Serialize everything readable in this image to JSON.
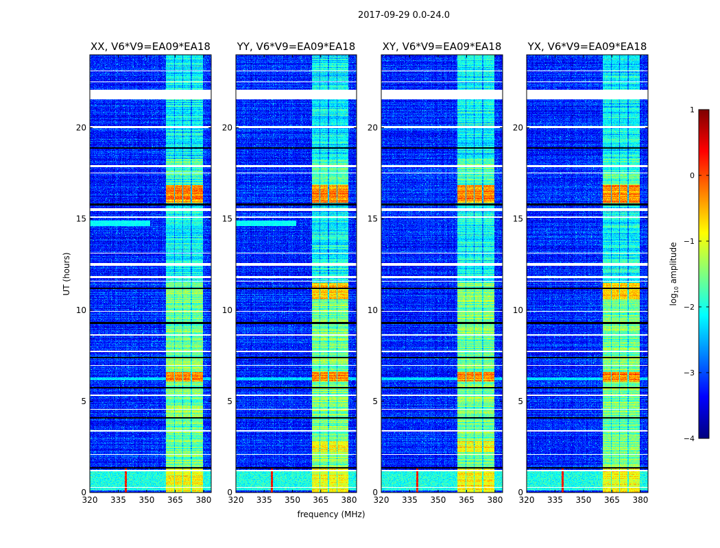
{
  "chart_data": {
    "type": "heatmap",
    "suptitle": "2017-09-29 0.0-24.0",
    "panels": [
      {
        "title": "XX, V6*V9=EA09*EA18",
        "seed": 11
      },
      {
        "title": "YY, V6*V9=EA09*EA18",
        "seed": 23
      },
      {
        "title": "XY, V6*V9=EA09*EA18",
        "seed": 37
      },
      {
        "title": "YX, V6*V9=EA09*EA18",
        "seed": 41
      }
    ],
    "xlabel": "frequency (MHz)",
    "ylabel": "UT (hours)",
    "xlim": [
      320,
      384
    ],
    "ylim": [
      0,
      24
    ],
    "xticks": [
      320,
      335,
      350,
      365,
      380
    ],
    "yticks": [
      0,
      5,
      10,
      15,
      20
    ],
    "colorbar": {
      "label_prefix": "log",
      "label_sub": "10",
      "label_suffix": " amplitude",
      "range": [
        -4,
        1
      ],
      "ticks": [
        1,
        0,
        -1,
        -2,
        -3,
        -4
      ],
      "tick_labels": [
        "1",
        "0",
        "−1",
        "−2",
        "−3",
        "−4"
      ],
      "colormap": "jet"
    },
    "features": {
      "background_log_amp": -3.2,
      "rfi_subbands_mhz": [
        [
          360.3,
          364.3
        ],
        [
          364.8,
          368.8
        ],
        [
          369.3,
          373.3
        ],
        [
          373.8,
          379.6
        ]
      ],
      "rfi_band_log_amp": -1.8,
      "flagged_hours": [
        [
          21.55,
          22.1
        ],
        [
          20.0,
          20.08
        ],
        [
          17.85,
          17.95
        ],
        [
          17.5,
          17.55
        ],
        [
          15.45,
          15.6
        ],
        [
          15.05,
          15.12
        ],
        [
          12.45,
          12.6
        ],
        [
          11.75,
          11.85
        ],
        [
          11.55,
          11.62
        ],
        [
          8.6,
          8.66
        ],
        [
          7.7,
          7.76
        ],
        [
          6.95,
          7.0
        ],
        [
          5.3,
          5.36
        ],
        [
          4.55,
          4.6
        ],
        [
          3.35,
          3.4
        ],
        [
          2.05,
          2.1
        ],
        [
          1.15,
          1.25
        ],
        [
          0.25,
          0.3
        ],
        [
          23.1,
          23.15
        ],
        [
          22.5,
          22.55
        ],
        [
          13.1,
          13.15
        ],
        [
          9.9,
          9.95
        ]
      ],
      "dark_hours": [
        18.9,
        15.8,
        11.2,
        9.3,
        7.4,
        5.75,
        4.1,
        1.35
      ],
      "strong_events": [
        {
          "hours": [
            15.9,
            16.85
          ],
          "log_amp": -0.3,
          "panels": [
            0,
            1,
            2,
            3
          ]
        },
        {
          "hours": [
            6.1,
            6.6
          ],
          "log_amp": -0.3,
          "panels": [
            0,
            1,
            2,
            3
          ]
        },
        {
          "hours": [
            10.6,
            11.5
          ],
          "log_amp": -0.7,
          "panels": [
            1,
            3
          ]
        },
        {
          "hours": [
            2.2,
            2.8
          ],
          "log_amp": -0.9,
          "panels": [
            1,
            2
          ]
        },
        {
          "hours": [
            0.0,
            1.3
          ],
          "log_amp": -0.9,
          "panels": [
            0,
            1,
            2,
            3
          ]
        }
      ],
      "broadband_hours": [
        0.1,
        1.25
      ],
      "broadband_log_amp": -2.0,
      "spike_mhz": 339,
      "spike_log_amp": 0.3
    }
  }
}
